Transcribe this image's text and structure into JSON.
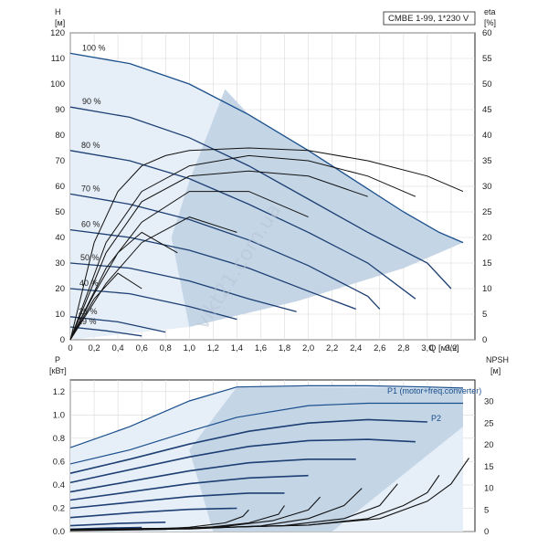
{
  "chart_data": [
    {
      "type": "line",
      "title": "CMBE 1-99, 1*230 V",
      "y_left_label": "H",
      "y_left_unit": "[м]",
      "y_right_label": "eta",
      "y_right_unit": "[%]",
      "x_label": "Q [м³/ч]",
      "xlim": [
        0,
        3.4
      ],
      "ylim_left": [
        0,
        120
      ],
      "ylim_right": [
        0,
        60
      ],
      "x_ticks": [
        0,
        0.2,
        0.4,
        0.6,
        0.8,
        1.0,
        1.2,
        1.4,
        1.6,
        1.8,
        2.0,
        2.2,
        2.4,
        2.6,
        2.8,
        3.0,
        3.2
      ],
      "x_tick_labels": [
        "0",
        "0,2",
        "0,4",
        "0,6",
        "0,8",
        "1,0",
        "1,2",
        "1,4",
        "1,6",
        "1,8",
        "2,0",
        "2,2",
        "2,4",
        "2,6",
        "2,8",
        "3,0",
        "3,2"
      ],
      "y_left_ticks": [
        0,
        10,
        20,
        30,
        40,
        50,
        60,
        70,
        80,
        90,
        100,
        110,
        120
      ],
      "y_right_ticks": [
        0,
        5,
        10,
        15,
        20,
        25,
        30,
        35,
        40,
        45,
        50,
        55,
        60
      ],
      "grid": true,
      "speed_labels": [
        "100 %",
        "90 %",
        "80 %",
        "70 %",
        "60 %",
        "50 %",
        "40 %",
        "26 %",
        "19 %"
      ],
      "head_series": [
        {
          "name": "100 %",
          "x": [
            0,
            0.5,
            1.0,
            1.5,
            2.0,
            2.4,
            2.8,
            3.1,
            3.3
          ],
          "y": [
            112,
            108,
            100,
            88,
            74,
            62,
            50,
            42,
            38
          ]
        },
        {
          "name": "90 %",
          "x": [
            0,
            0.5,
            1.0,
            1.5,
            2.0,
            2.5,
            3.0,
            3.2
          ],
          "y": [
            91,
            87,
            79,
            68,
            55,
            42,
            30,
            20
          ]
        },
        {
          "name": "80 %",
          "x": [
            0,
            0.5,
            1.0,
            1.5,
            2.0,
            2.5,
            2.9
          ],
          "y": [
            74,
            70,
            63,
            53,
            42,
            30,
            16
          ]
        },
        {
          "name": "70 %",
          "x": [
            0,
            0.5,
            1.0,
            1.5,
            2.0,
            2.5,
            2.6
          ],
          "y": [
            57,
            53,
            47,
            39,
            29,
            17,
            12
          ]
        },
        {
          "name": "60 %",
          "x": [
            0,
            0.5,
            1.0,
            1.5,
            2.0,
            2.4
          ],
          "y": [
            43,
            40,
            35,
            28,
            19,
            12
          ]
        },
        {
          "name": "50 %",
          "x": [
            0,
            0.5,
            1.0,
            1.5,
            1.9
          ],
          "y": [
            30,
            28,
            23,
            16,
            11
          ]
        },
        {
          "name": "40 %",
          "x": [
            0,
            0.5,
            1.0,
            1.4
          ],
          "y": [
            20,
            18,
            13,
            8
          ]
        },
        {
          "name": "26 %",
          "x": [
            0,
            0.4,
            0.8
          ],
          "y": [
            9,
            7,
            3
          ]
        },
        {
          "name": "19 %",
          "x": [
            0,
            0.3,
            0.6
          ],
          "y": [
            5,
            3.5,
            1.5
          ]
        }
      ],
      "efficiency_series": [
        {
          "x": [
            0,
            0.2,
            0.4,
            0.6,
            0.8,
            1.0,
            1.5,
            2.0,
            2.5,
            3.0,
            3.3
          ],
          "y": [
            0,
            19,
            29,
            34,
            36,
            37,
            37.5,
            37,
            35,
            32,
            29
          ]
        },
        {
          "x": [
            0,
            0.3,
            0.6,
            1.0,
            1.5,
            2.0,
            2.5,
            2.9
          ],
          "y": [
            0,
            19,
            29,
            34,
            36,
            35,
            32,
            28
          ]
        },
        {
          "x": [
            0,
            0.3,
            0.6,
            1.0,
            1.5,
            2.0,
            2.5
          ],
          "y": [
            0,
            17,
            27,
            32,
            33,
            32,
            28
          ]
        },
        {
          "x": [
            0,
            0.3,
            0.6,
            1.0,
            1.5,
            2.0
          ],
          "y": [
            0,
            14,
            23,
            29,
            29,
            24
          ]
        },
        {
          "x": [
            0,
            0.3,
            0.6,
            1.0,
            1.4
          ],
          "y": [
            0,
            11,
            19,
            24,
            21
          ]
        },
        {
          "x": [
            0,
            0.2,
            0.4,
            0.6,
            0.9
          ],
          "y": [
            0,
            9,
            17,
            21,
            17
          ]
        },
        {
          "x": [
            0,
            0.2,
            0.4,
            0.6
          ],
          "y": [
            0,
            8,
            13,
            10
          ]
        }
      ]
    },
    {
      "type": "line",
      "y_left_label": "P",
      "y_left_unit": "[кВт]",
      "y_right_label": "NPSH",
      "y_right_unit": "[м]",
      "xlim": [
        0,
        3.4
      ],
      "ylim_left": [
        0,
        1.3
      ],
      "ylim_right": [
        0,
        35
      ],
      "y_left_ticks": [
        0,
        0.2,
        0.4,
        0.6,
        0.8,
        1.0,
        1.2
      ],
      "y_left_tick_labels": [
        "0.0",
        "0.2",
        "0.4",
        "0.6",
        "0.8",
        "1.0",
        "1.2"
      ],
      "y_right_ticks": [
        0,
        5,
        10,
        15,
        20,
        25,
        30
      ],
      "grid": true,
      "legend": [
        "P1 (motor+freq.converter)",
        "P2"
      ],
      "power_series": [
        {
          "name": "P1 (motor+freq.converter)",
          "x": [
            0,
            0.5,
            1.0,
            1.4,
            2.0,
            2.5,
            3.0,
            3.3
          ],
          "y": [
            0.72,
            0.9,
            1.12,
            1.24,
            1.25,
            1.25,
            1.24,
            1.23
          ]
        },
        {
          "name": "P2",
          "x": [
            0,
            0.5,
            1.0,
            1.4,
            2.0,
            2.5,
            3.0,
            3.3
          ],
          "y": [
            0.58,
            0.7,
            0.86,
            0.98,
            1.08,
            1.1,
            1.1,
            1.1
          ]
        },
        {
          "x": [
            0,
            0.5,
            1.0,
            1.5,
            2.0,
            2.5,
            3.0
          ],
          "y": [
            0.5,
            0.62,
            0.75,
            0.86,
            0.93,
            0.96,
            0.94
          ]
        },
        {
          "x": [
            0,
            0.5,
            1.0,
            1.5,
            2.0,
            2.5,
            2.9
          ],
          "y": [
            0.42,
            0.53,
            0.64,
            0.73,
            0.78,
            0.79,
            0.77
          ]
        },
        {
          "x": [
            0,
            0.5,
            1.0,
            1.5,
            2.0,
            2.4
          ],
          "y": [
            0.34,
            0.43,
            0.52,
            0.59,
            0.62,
            0.62
          ]
        },
        {
          "x": [
            0,
            0.5,
            1.0,
            1.5,
            2.0
          ],
          "y": [
            0.27,
            0.34,
            0.41,
            0.46,
            0.48
          ]
        },
        {
          "x": [
            0,
            0.5,
            1.0,
            1.5,
            1.8
          ],
          "y": [
            0.2,
            0.25,
            0.3,
            0.33,
            0.33
          ]
        },
        {
          "x": [
            0,
            0.5,
            1.0,
            1.4
          ],
          "y": [
            0.12,
            0.16,
            0.19,
            0.2
          ]
        },
        {
          "x": [
            0,
            0.4,
            0.8
          ],
          "y": [
            0.05,
            0.07,
            0.08
          ]
        },
        {
          "x": [
            0,
            0.3,
            0.6
          ],
          "y": [
            0.02,
            0.03,
            0.035
          ]
        }
      ],
      "npsh_series": [
        {
          "x": [
            0,
            1.0,
            2.0,
            2.6,
            3.0,
            3.2,
            3.35
          ],
          "y": [
            0.5,
            0.8,
            1.5,
            3,
            7,
            11,
            17
          ]
        },
        {
          "x": [
            0,
            1.0,
            2.0,
            2.5,
            2.8,
            3.0,
            3.1
          ],
          "y": [
            0.5,
            0.8,
            1.5,
            3,
            6,
            9,
            13
          ]
        },
        {
          "x": [
            0,
            1.0,
            1.8,
            2.3,
            2.6,
            2.75
          ],
          "y": [
            0.4,
            0.7,
            1.4,
            3,
            6,
            11
          ]
        },
        {
          "x": [
            0,
            1.0,
            1.6,
            2.0,
            2.3,
            2.45
          ],
          "y": [
            0.4,
            0.6,
            1.3,
            3,
            6,
            10
          ]
        },
        {
          "x": [
            0,
            0.8,
            1.3,
            1.7,
            2.0,
            2.1
          ],
          "y": [
            0.3,
            0.5,
            1.2,
            2.5,
            5,
            8
          ]
        },
        {
          "x": [
            0,
            0.8,
            1.2,
            1.5,
            1.75,
            1.8
          ],
          "y": [
            0.3,
            0.5,
            1.1,
            2,
            4,
            6
          ]
        },
        {
          "x": [
            0,
            0.6,
            1.0,
            1.3,
            1.45,
            1.5
          ],
          "y": [
            0.2,
            0.4,
            1,
            2,
            3.5,
            5
          ]
        }
      ]
    }
  ],
  "watermark": "vikt21.com.ua"
}
